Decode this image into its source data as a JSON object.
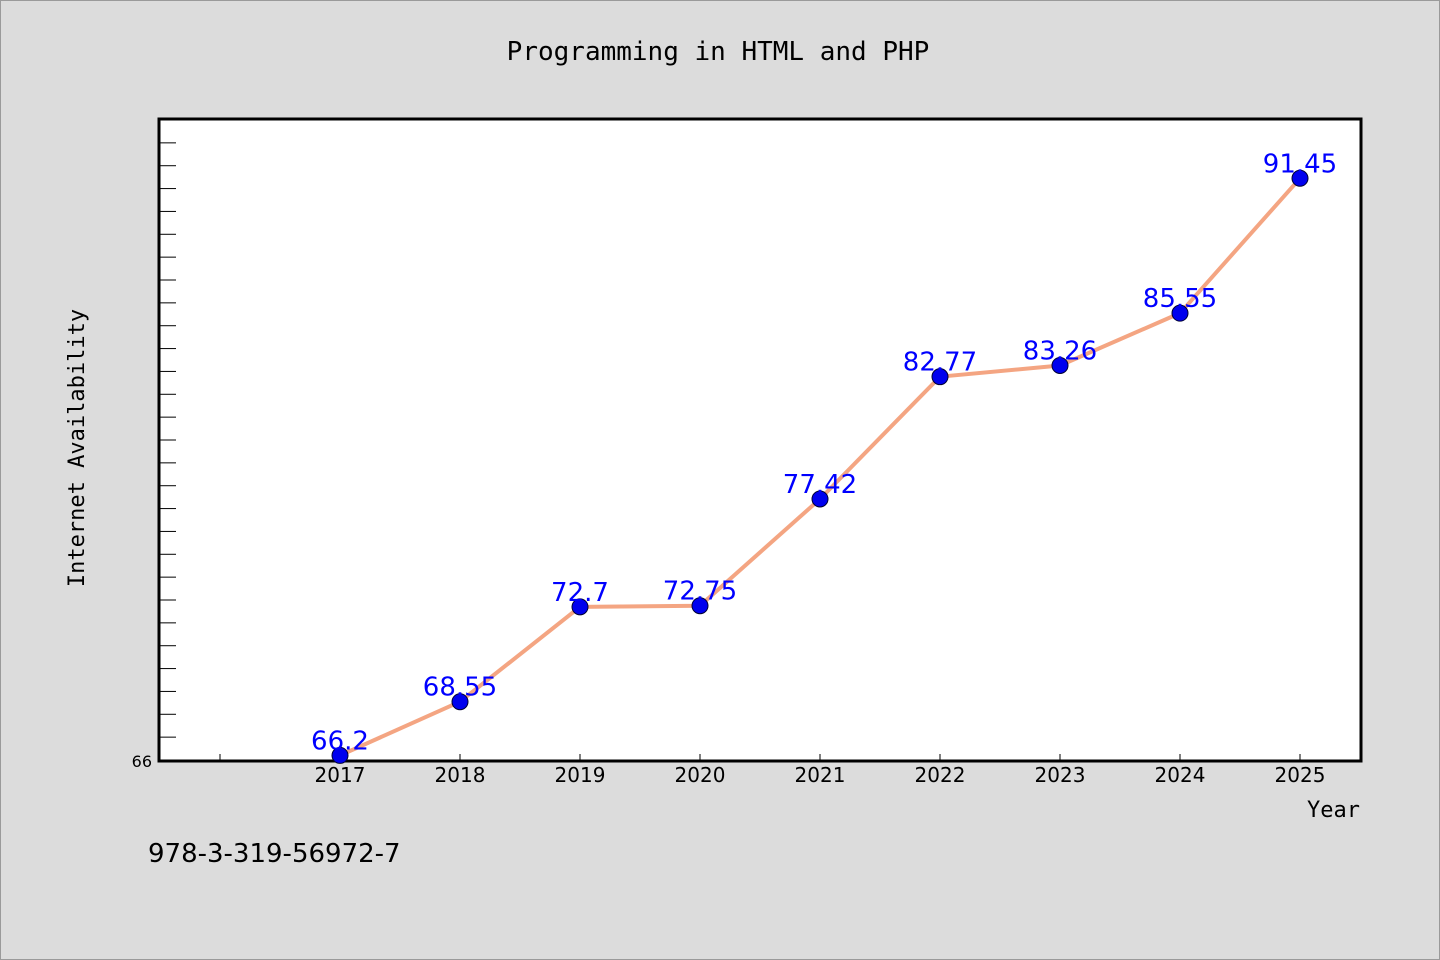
{
  "chart_data": {
    "type": "line",
    "title": "Programming in HTML and PHP",
    "xlabel": "Year",
    "ylabel": "Internet Availability",
    "x": [
      "2017",
      "2018",
      "2019",
      "2020",
      "2021",
      "2022",
      "2023",
      "2024",
      "2025"
    ],
    "series": [
      {
        "values": [
          66.2,
          68.55,
          72.7,
          72.75,
          77.42,
          82.77,
          83.26,
          85.55,
          91.45
        ],
        "labels": [
          "66.2",
          "68.55",
          "72.7",
          "72.75",
          "77.42",
          "82.77",
          "83.26",
          "85.55",
          "91.45"
        ],
        "line_color": "#f4a582",
        "marker_color": "#0000ee",
        "label_color": "#0000ff"
      }
    ],
    "ylim": [
      66,
      94
    ],
    "y_tick_labels": [
      "66"
    ],
    "grid": false,
    "legend": "none"
  },
  "footer": {
    "isbn": "978-3-319-56972-7"
  },
  "colors": {
    "background": "#dcdcdc",
    "plot_area": "#ffffff",
    "axis": "#000000"
  }
}
